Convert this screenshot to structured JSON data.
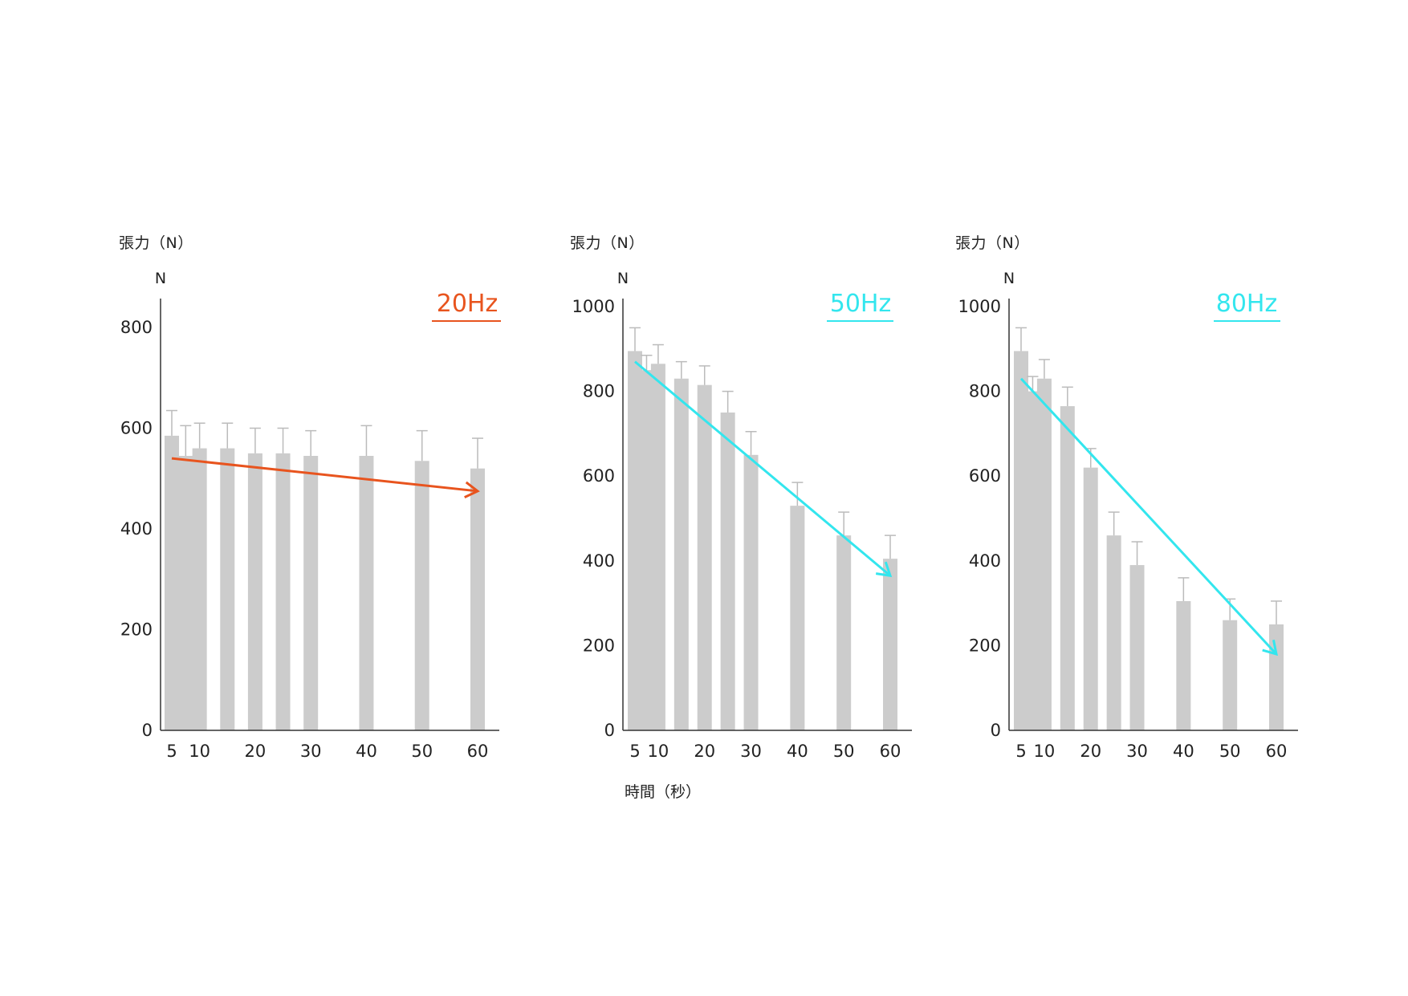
{
  "x_axis_title": "時間（秒）",
  "colors": {
    "bar": "#cccccc",
    "error_bar": "#bbbbbb",
    "axis": "#333333",
    "hz20": "#e8541e",
    "hz50": "#33e6ee",
    "hz80": "#33e6ee"
  },
  "chart_data": [
    {
      "type": "bar",
      "ylabel": "張力（N）",
      "unit_label": "N",
      "badge": "20Hz",
      "badge_color": "#e8541e",
      "ylim": [
        0,
        800
      ],
      "yticks": [
        0,
        200,
        400,
        600,
        800
      ],
      "xticks": [
        "5",
        "10",
        "20",
        "30",
        "40",
        "50",
        "60"
      ],
      "x": [
        5,
        7.5,
        10,
        15,
        20,
        25,
        30,
        40,
        50,
        60
      ],
      "values": [
        585,
        545,
        560,
        560,
        550,
        550,
        545,
        545,
        535,
        520
      ],
      "errors": [
        50,
        60,
        50,
        50,
        50,
        50,
        50,
        60,
        60,
        60
      ],
      "trend": {
        "from": [
          5,
          540
        ],
        "to": [
          60,
          475
        ]
      }
    },
    {
      "type": "bar",
      "ylabel": "張力（N）",
      "unit_label": "N",
      "badge": "50Hz",
      "badge_color": "#33e6ee",
      "ylim": [
        0,
        1000
      ],
      "yticks": [
        0,
        200,
        400,
        600,
        800,
        1000
      ],
      "xticks": [
        "5",
        "10",
        "20",
        "30",
        "40",
        "50",
        "60"
      ],
      "x": [
        5,
        7.5,
        10,
        15,
        20,
        25,
        30,
        40,
        50,
        60
      ],
      "values": [
        895,
        850,
        865,
        830,
        815,
        750,
        650,
        530,
        460,
        405
      ],
      "errors": [
        55,
        35,
        45,
        40,
        45,
        50,
        55,
        55,
        55,
        55
      ],
      "trend": {
        "from": [
          5,
          870
        ],
        "to": [
          60,
          365
        ]
      }
    },
    {
      "type": "bar",
      "ylabel": "張力（N）",
      "unit_label": "N",
      "badge": "80Hz",
      "badge_color": "#33e6ee",
      "ylim": [
        0,
        1000
      ],
      "yticks": [
        0,
        200,
        400,
        600,
        800,
        1000
      ],
      "xticks": [
        "5",
        "10",
        "20",
        "30",
        "40",
        "50",
        "60"
      ],
      "x": [
        5,
        7.5,
        10,
        15,
        20,
        25,
        30,
        40,
        50,
        60
      ],
      "values": [
        895,
        800,
        830,
        765,
        620,
        460,
        390,
        305,
        260,
        250
      ],
      "errors": [
        55,
        35,
        45,
        45,
        45,
        55,
        55,
        55,
        50,
        55
      ],
      "trend": {
        "from": [
          5,
          830
        ],
        "to": [
          60,
          180
        ]
      }
    }
  ]
}
